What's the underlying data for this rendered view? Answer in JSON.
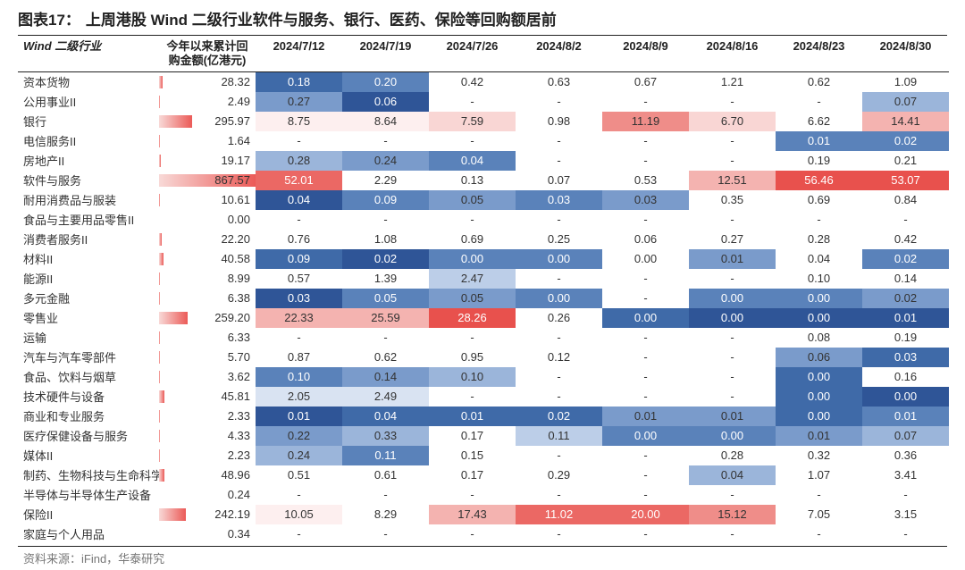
{
  "title_label": "图表17：",
  "title_text": "上周港股 Wind 二级行业软件与服务、银行、医药、保险等回购额居前",
  "header": {
    "row_label": "Wind 二级行业",
    "cum_label": "今年以来累计回\n购金额(亿港元)",
    "dates": [
      "2024/7/12",
      "2024/7/19",
      "2024/7/26",
      "2024/8/2",
      "2024/8/9",
      "2024/8/16",
      "2024/8/23",
      "2024/8/30"
    ]
  },
  "bar_color_light": "#f8d9d7",
  "bar_color_dark": "#eb5a57",
  "bar_max": 867.57,
  "heat_palette": {
    "min_color": "#2f5597",
    "zero_color": "#f6f8fc",
    "max_color": "#eb5a57"
  },
  "cell_colors": {
    "b0": "#2f5597",
    "b1": "#3f6aa8",
    "b2": "#5a82ba",
    "b3": "#7a9bcb",
    "b4": "#9bb5da",
    "b5": "#bccee8",
    "b6": "#d9e3f2",
    "b7": "#eef3fa",
    "r0": "#fdefef",
    "r1": "#f9d6d4",
    "r2": "#f4b3b0",
    "r3": "#ef8d89",
    "r4": "#eb6864",
    "r5": "#e8514d"
  },
  "rows": [
    {
      "name": "资本货物",
      "cum": 28.32,
      "vals": [
        [
          "0.18",
          "b1"
        ],
        [
          "0.20",
          "b2"
        ],
        [
          "0.42",
          ""
        ],
        [
          "0.63",
          ""
        ],
        [
          "0.67",
          ""
        ],
        [
          "1.21",
          ""
        ],
        [
          "0.62",
          ""
        ],
        [
          "1.09",
          ""
        ]
      ]
    },
    {
      "name": "公用事业II",
      "cum": 2.49,
      "vals": [
        [
          "0.27",
          "b3"
        ],
        [
          "0.06",
          "b0"
        ],
        [
          "-",
          ""
        ],
        [
          "-",
          ""
        ],
        [
          "-",
          ""
        ],
        [
          "-",
          ""
        ],
        [
          "-",
          ""
        ],
        [
          "0.07",
          "b4"
        ]
      ]
    },
    {
      "name": "银行",
      "cum": 295.97,
      "vals": [
        [
          "8.75",
          "r0"
        ],
        [
          "8.64",
          "r0"
        ],
        [
          "7.59",
          "r1"
        ],
        [
          "0.98",
          ""
        ],
        [
          "11.19",
          "r3"
        ],
        [
          "6.70",
          "r1"
        ],
        [
          "6.62",
          ""
        ],
        [
          "14.41",
          "r2"
        ]
      ]
    },
    {
      "name": "电信服务II",
      "cum": 1.64,
      "vals": [
        [
          "-",
          ""
        ],
        [
          "-",
          ""
        ],
        [
          "-",
          ""
        ],
        [
          "-",
          ""
        ],
        [
          "-",
          ""
        ],
        [
          "-",
          ""
        ],
        [
          "0.01",
          "b2"
        ],
        [
          "0.02",
          "b2"
        ]
      ]
    },
    {
      "name": "房地产II",
      "cum": 19.17,
      "vals": [
        [
          "0.28",
          "b4"
        ],
        [
          "0.24",
          "b3"
        ],
        [
          "0.04",
          "b2"
        ],
        [
          "-",
          ""
        ],
        [
          "-",
          ""
        ],
        [
          "-",
          ""
        ],
        [
          "0.19",
          ""
        ],
        [
          "0.21",
          ""
        ]
      ]
    },
    {
      "name": "软件与服务",
      "cum": 867.57,
      "vals": [
        [
          "52.01",
          "r4"
        ],
        [
          "2.29",
          ""
        ],
        [
          "0.13",
          ""
        ],
        [
          "0.07",
          ""
        ],
        [
          "0.53",
          ""
        ],
        [
          "12.51",
          "r2"
        ],
        [
          "56.46",
          "r5"
        ],
        [
          "53.07",
          "r5"
        ]
      ]
    },
    {
      "name": "耐用消费品与服装",
      "cum": 10.61,
      "vals": [
        [
          "0.04",
          "b0"
        ],
        [
          "0.09",
          "b2"
        ],
        [
          "0.05",
          "b3"
        ],
        [
          "0.03",
          "b2"
        ],
        [
          "0.03",
          "b3"
        ],
        [
          "0.35",
          ""
        ],
        [
          "0.69",
          ""
        ],
        [
          "0.84",
          ""
        ]
      ]
    },
    {
      "name": "食品与主要用品零售II",
      "cum": 0.0,
      "vals": [
        [
          "-",
          ""
        ],
        [
          "-",
          ""
        ],
        [
          "-",
          ""
        ],
        [
          "-",
          ""
        ],
        [
          "-",
          ""
        ],
        [
          "-",
          ""
        ],
        [
          "-",
          ""
        ],
        [
          "-",
          ""
        ]
      ]
    },
    {
      "name": "消费者服务II",
      "cum": 22.2,
      "vals": [
        [
          "0.76",
          ""
        ],
        [
          "1.08",
          ""
        ],
        [
          "0.69",
          ""
        ],
        [
          "0.25",
          ""
        ],
        [
          "0.06",
          ""
        ],
        [
          "0.27",
          ""
        ],
        [
          "0.28",
          ""
        ],
        [
          "0.42",
          ""
        ]
      ]
    },
    {
      "name": "材料II",
      "cum": 40.58,
      "vals": [
        [
          "0.09",
          "b1"
        ],
        [
          "0.02",
          "b0"
        ],
        [
          "0.00",
          "b2"
        ],
        [
          "0.00",
          "b2"
        ],
        [
          "0.00",
          ""
        ],
        [
          "0.01",
          "b3"
        ],
        [
          "0.04",
          ""
        ],
        [
          "0.02",
          "b2"
        ]
      ]
    },
    {
      "name": "能源II",
      "cum": 8.99,
      "vals": [
        [
          "0.57",
          ""
        ],
        [
          "1.39",
          ""
        ],
        [
          "2.47",
          "b5"
        ],
        [
          "-",
          ""
        ],
        [
          "-",
          ""
        ],
        [
          "-",
          ""
        ],
        [
          "0.10",
          ""
        ],
        [
          "0.14",
          ""
        ]
      ]
    },
    {
      "name": "多元金融",
      "cum": 6.38,
      "vals": [
        [
          "0.03",
          "b0"
        ],
        [
          "0.05",
          "b2"
        ],
        [
          "0.05",
          "b3"
        ],
        [
          "0.00",
          "b2"
        ],
        [
          "-",
          ""
        ],
        [
          "0.00",
          "b2"
        ],
        [
          "0.00",
          "b2"
        ],
        [
          "0.02",
          "b3"
        ]
      ]
    },
    {
      "name": "零售业",
      "cum": 259.2,
      "vals": [
        [
          "22.33",
          "r2"
        ],
        [
          "25.59",
          "r2"
        ],
        [
          "28.26",
          "r5"
        ],
        [
          "0.26",
          ""
        ],
        [
          "0.00",
          "b1"
        ],
        [
          "0.00",
          "b0"
        ],
        [
          "0.00",
          "b0"
        ],
        [
          "0.01",
          "b0"
        ]
      ]
    },
    {
      "name": "运输",
      "cum": 6.33,
      "vals": [
        [
          "-",
          ""
        ],
        [
          "-",
          ""
        ],
        [
          "-",
          ""
        ],
        [
          "-",
          ""
        ],
        [
          "-",
          ""
        ],
        [
          "-",
          ""
        ],
        [
          "0.08",
          ""
        ],
        [
          "0.19",
          ""
        ]
      ]
    },
    {
      "name": "汽车与汽车零部件",
      "cum": 5.7,
      "vals": [
        [
          "0.87",
          ""
        ],
        [
          "0.62",
          ""
        ],
        [
          "0.95",
          ""
        ],
        [
          "0.12",
          ""
        ],
        [
          "-",
          ""
        ],
        [
          "-",
          ""
        ],
        [
          "0.06",
          "b3"
        ],
        [
          "0.03",
          "b1"
        ]
      ]
    },
    {
      "name": "食品、饮料与烟草",
      "cum": 3.62,
      "vals": [
        [
          "0.10",
          "b2"
        ],
        [
          "0.14",
          "b3"
        ],
        [
          "0.10",
          "b4"
        ],
        [
          "-",
          ""
        ],
        [
          "-",
          ""
        ],
        [
          "-",
          ""
        ],
        [
          "0.00",
          "b1"
        ],
        [
          "0.16",
          ""
        ]
      ]
    },
    {
      "name": "技术硬件与设备",
      "cum": 45.81,
      "vals": [
        [
          "2.05",
          "b6"
        ],
        [
          "2.49",
          "b6"
        ],
        [
          "-",
          ""
        ],
        [
          "-",
          ""
        ],
        [
          "-",
          ""
        ],
        [
          "-",
          ""
        ],
        [
          "0.00",
          "b1"
        ],
        [
          "0.00",
          "b0"
        ]
      ]
    },
    {
      "name": "商业和专业服务",
      "cum": 2.33,
      "vals": [
        [
          "0.01",
          "b0"
        ],
        [
          "0.04",
          "b1"
        ],
        [
          "0.01",
          "b1"
        ],
        [
          "0.02",
          "b1"
        ],
        [
          "0.01",
          "b3"
        ],
        [
          "0.01",
          "b3"
        ],
        [
          "0.00",
          "b1"
        ],
        [
          "0.01",
          "b2"
        ]
      ]
    },
    {
      "name": "医疗保健设备与服务",
      "cum": 4.33,
      "vals": [
        [
          "0.22",
          "b3"
        ],
        [
          "0.33",
          "b4"
        ],
        [
          "0.17",
          ""
        ],
        [
          "0.11",
          "b5"
        ],
        [
          "0.00",
          "b2"
        ],
        [
          "0.00",
          "b2"
        ],
        [
          "0.01",
          "b3"
        ],
        [
          "0.07",
          "b4"
        ]
      ]
    },
    {
      "name": "媒体II",
      "cum": 2.23,
      "vals": [
        [
          "0.24",
          "b4"
        ],
        [
          "0.11",
          "b2"
        ],
        [
          "0.15",
          ""
        ],
        [
          "-",
          ""
        ],
        [
          "-",
          ""
        ],
        [
          "0.28",
          ""
        ],
        [
          "0.32",
          ""
        ],
        [
          "0.36",
          ""
        ]
      ]
    },
    {
      "name": "制药、生物科技与生命科学",
      "cum": 48.96,
      "vals": [
        [
          "0.51",
          ""
        ],
        [
          "0.61",
          ""
        ],
        [
          "0.17",
          ""
        ],
        [
          "0.29",
          ""
        ],
        [
          "-",
          ""
        ],
        [
          "0.04",
          "b4"
        ],
        [
          "1.07",
          ""
        ],
        [
          "3.41",
          ""
        ]
      ]
    },
    {
      "name": "半导体与半导体生产设备",
      "cum": 0.24,
      "vals": [
        [
          "-",
          ""
        ],
        [
          "-",
          ""
        ],
        [
          "-",
          ""
        ],
        [
          "-",
          ""
        ],
        [
          "-",
          ""
        ],
        [
          "-",
          ""
        ],
        [
          "-",
          ""
        ],
        [
          "-",
          ""
        ]
      ]
    },
    {
      "name": "保险II",
      "cum": 242.19,
      "vals": [
        [
          "10.05",
          "r0"
        ],
        [
          "8.29",
          ""
        ],
        [
          "17.43",
          "r2"
        ],
        [
          "11.02",
          "r4"
        ],
        [
          "20.00",
          "r4"
        ],
        [
          "15.12",
          "r3"
        ],
        [
          "7.05",
          ""
        ],
        [
          "3.15",
          ""
        ]
      ]
    },
    {
      "name": "家庭与个人用品",
      "cum": 0.34,
      "vals": [
        [
          "-",
          ""
        ],
        [
          "-",
          ""
        ],
        [
          "-",
          ""
        ],
        [
          "-",
          ""
        ],
        [
          "-",
          ""
        ],
        [
          "-",
          ""
        ],
        [
          "-",
          ""
        ],
        [
          "-",
          ""
        ]
      ]
    }
  ],
  "source": "资料来源：iFind，华泰研究"
}
